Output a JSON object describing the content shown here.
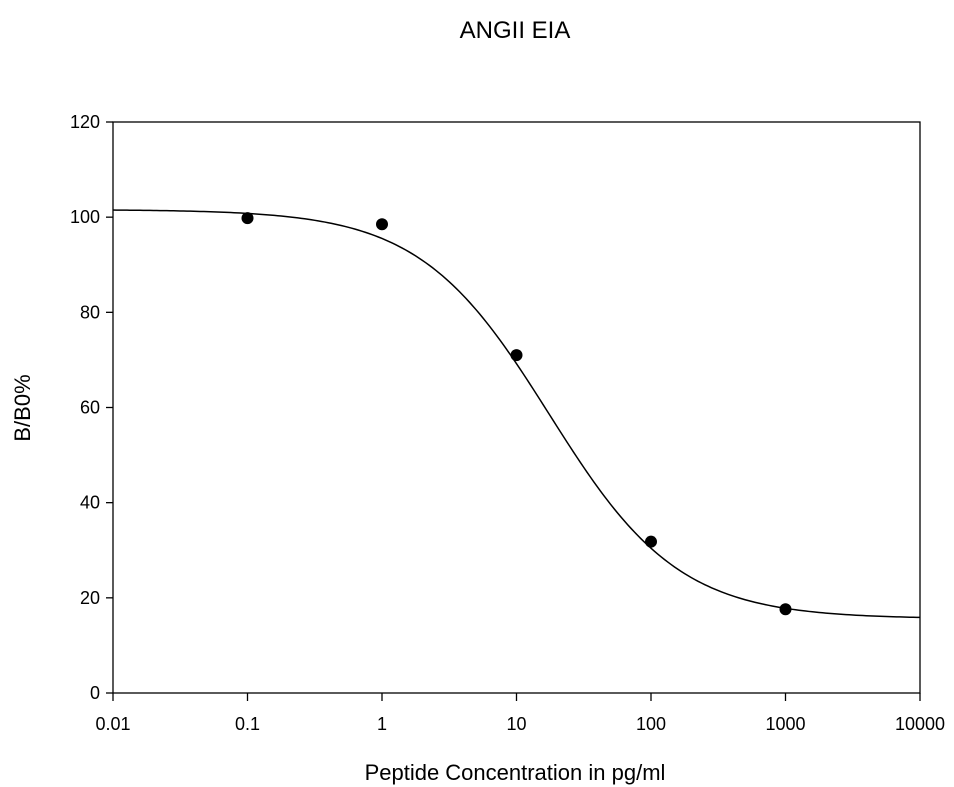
{
  "chart_data": {
    "type": "scatter",
    "title": "ANGII EIA",
    "xlabel": "Peptide Concentration in pg/ml",
    "ylabel": "B/B0%",
    "x_scale": "log",
    "xlim": [
      0.01,
      10000
    ],
    "ylim": [
      0,
      120
    ],
    "x_ticks": [
      0.01,
      0.1,
      1,
      10,
      100,
      1000,
      10000
    ],
    "x_tick_labels": [
      "0.01",
      "0.1",
      "1",
      "10",
      "100",
      "1000",
      "10000"
    ],
    "y_ticks": [
      0,
      20,
      40,
      60,
      80,
      100,
      120
    ],
    "y_tick_labels": [
      "0",
      "20",
      "40",
      "60",
      "80",
      "100",
      "120"
    ],
    "grid": false,
    "series": [
      {
        "kind": "points",
        "x": [
          0.1,
          1,
          10,
          100,
          1000
        ],
        "y": [
          99.8,
          98.5,
          71.0,
          31.8,
          17.6
        ]
      },
      {
        "kind": "fit-curve",
        "model": "4PL",
        "top": 101.6,
        "bottom": 15.6,
        "ec50": 17.5,
        "hill": 0.9
      }
    ],
    "colors": {
      "line": "#000000",
      "marker": "#000000",
      "background": "#ffffff"
    }
  }
}
